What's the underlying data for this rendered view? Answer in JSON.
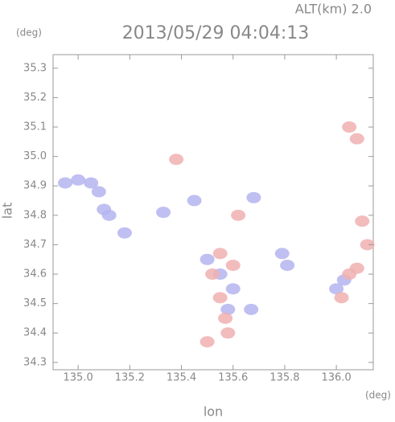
{
  "chart_data": {
    "type": "scatter",
    "title": "2013/05/29 04:04:13",
    "altitude_label": "ALT(km) 2.0",
    "y_unit": "(deg)",
    "x_unit": "(deg)",
    "x_label": "lon",
    "y_label": "lat",
    "xlim": [
      134.903,
      136.143
    ],
    "ylim": [
      34.275,
      35.346
    ],
    "xticks": [
      {
        "value": 135.0,
        "label": "135.0"
      },
      135.2,
      135.4,
      135.6,
      135.8,
      {
        "value": 136.0,
        "label": "136.0"
      }
    ],
    "yticks": [
      34.3,
      34.4,
      34.5,
      34.6,
      34.7,
      34.8,
      34.9,
      {
        "value": 35.0,
        "label": "35.0"
      },
      35.1,
      35.2,
      35.3
    ],
    "series": [
      {
        "color": "#b4b4f0",
        "x": [
          134.95,
          135.0,
          135.05,
          135.08,
          135.1,
          135.12,
          135.18,
          135.33,
          135.45,
          135.5,
          135.55,
          135.6,
          135.58,
          135.67,
          135.79,
          135.81,
          136.0,
          136.03,
          135.68
        ],
        "y": [
          34.91,
          34.92,
          34.91,
          34.88,
          34.82,
          34.8,
          34.74,
          34.81,
          34.85,
          34.65,
          34.6,
          34.55,
          34.48,
          34.48,
          34.67,
          34.63,
          34.55,
          34.58,
          34.86
        ]
      },
      {
        "color": "#f0b0b0",
        "x": [
          135.38,
          135.55,
          135.52,
          135.6,
          135.57,
          135.58,
          135.5,
          135.62,
          136.05,
          136.08,
          136.1,
          136.12,
          136.08,
          136.05,
          136.02,
          135.55
        ],
        "y": [
          34.99,
          34.67,
          34.6,
          34.63,
          34.45,
          34.4,
          34.37,
          34.8,
          35.1,
          35.06,
          34.78,
          34.7,
          34.62,
          34.6,
          34.52,
          34.52
        ]
      }
    ]
  }
}
